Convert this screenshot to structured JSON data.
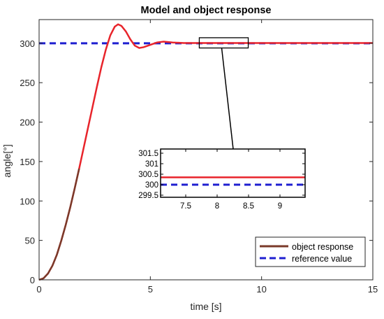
{
  "chart_data": {
    "type": "line",
    "title": "Model and object response",
    "xlabel": "time [s]",
    "ylabel": "angle[°]",
    "xlim": [
      0,
      15
    ],
    "ylim": [
      0,
      330
    ],
    "grid": false,
    "x_ticks": [
      0,
      5,
      10,
      15
    ],
    "y_ticks": [
      0,
      50,
      100,
      150,
      200,
      250,
      300
    ],
    "legend_position": "bottom-right",
    "series": [
      {
        "name": "object response",
        "style": "solid",
        "color": "#e8242b",
        "points": [
          [
            0,
            0
          ],
          [
            0.2,
            2
          ],
          [
            0.4,
            8
          ],
          [
            0.6,
            18
          ],
          [
            0.8,
            32
          ],
          [
            1.0,
            50
          ],
          [
            1.2,
            70
          ],
          [
            1.4,
            92
          ],
          [
            1.6,
            116
          ],
          [
            1.8,
            141
          ],
          [
            2.0,
            167
          ],
          [
            2.2,
            193
          ],
          [
            2.4,
            219
          ],
          [
            2.6,
            245
          ],
          [
            2.8,
            270
          ],
          [
            3.0,
            292
          ],
          [
            3.2,
            310
          ],
          [
            3.4,
            321
          ],
          [
            3.55,
            324
          ],
          [
            3.7,
            322
          ],
          [
            3.9,
            315
          ],
          [
            4.1,
            305
          ],
          [
            4.3,
            297
          ],
          [
            4.5,
            294
          ],
          [
            4.7,
            295
          ],
          [
            5.0,
            298
          ],
          [
            5.3,
            301
          ],
          [
            5.6,
            302
          ],
          [
            6.0,
            301
          ],
          [
            6.5,
            300.3
          ],
          [
            7,
            300.3
          ],
          [
            8,
            300.3
          ],
          [
            9,
            300.3
          ],
          [
            10,
            300.3
          ],
          [
            11,
            300.3
          ],
          [
            12,
            300.3
          ],
          [
            13,
            300.3
          ],
          [
            14,
            300.3
          ],
          [
            15,
            300.3
          ]
        ]
      },
      {
        "name": "reference value",
        "style": "dashed",
        "color": "#1f1fd0",
        "points": [
          [
            0,
            300
          ],
          [
            15,
            300
          ]
        ]
      }
    ],
    "inset": {
      "xlim": [
        7.1,
        9.4
      ],
      "ylim": [
        299.4,
        301.7
      ],
      "x_ticks": [
        7.5,
        8,
        8.5,
        9
      ],
      "y_ticks": [
        299.5,
        300,
        300.5,
        301,
        301.5
      ],
      "x_tick_labels": [
        "7.5",
        "8",
        "8.5",
        "9"
      ],
      "y_tick_labels": [
        "299.5",
        "300",
        "300.5",
        "301",
        "301.5"
      ],
      "object_response_value": 300.35,
      "reference_value": 300
    },
    "zoom_box": {
      "xlim": [
        7.2,
        9.4
      ],
      "ylim": [
        294,
        307
      ]
    },
    "colors": {
      "object_response": "#e8242b",
      "object_response_early": "#7a3a2a",
      "reference": "#1f1fd0",
      "axes": "#262626"
    }
  }
}
